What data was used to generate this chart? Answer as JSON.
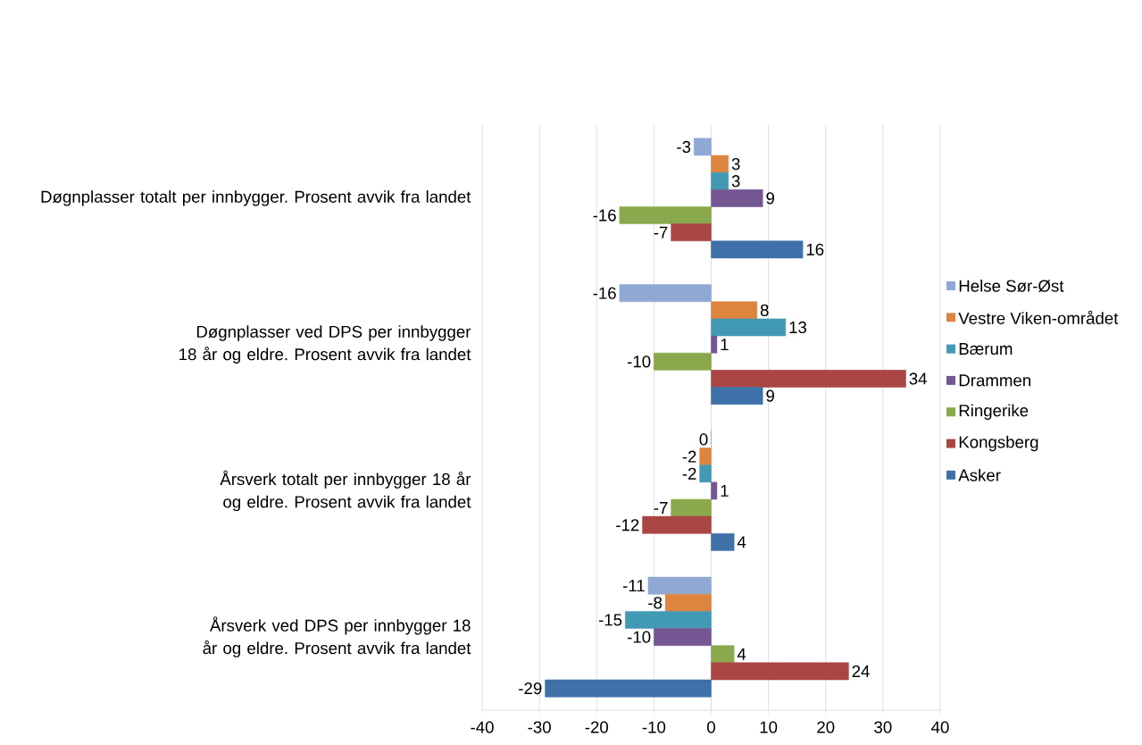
{
  "chart_data": {
    "type": "bar",
    "orientation": "horizontal",
    "categories": [
      "Døgnplasser totalt per innbygger. Prosent avvik fra landet",
      "Døgnplasser ved DPS per innbygger 18 år og eldre. Prosent avvik fra landet",
      "Årsverk totalt per innbygger 18 år og eldre. Prosent avvik fra landet",
      "Årsverk ved DPS per innbygger 18 år og eldre. Prosent avvik fra landet"
    ],
    "series": [
      {
        "name": "Helse Sør-Øst",
        "color": "#8fa9d4",
        "values": [
          -3,
          -16,
          0,
          -11
        ]
      },
      {
        "name": "Vestre Viken-området",
        "color": "#dd8440",
        "values": [
          3,
          8,
          -2,
          -8
        ]
      },
      {
        "name": "Bærum",
        "color": "#4299b4",
        "values": [
          3,
          13,
          -2,
          -15
        ]
      },
      {
        "name": "Drammen",
        "color": "#735692",
        "values": [
          9,
          1,
          1,
          -10
        ]
      },
      {
        "name": "Ringerike",
        "color": "#8aa84c",
        "values": [
          -16,
          -10,
          -7,
          4
        ]
      },
      {
        "name": "Kongsberg",
        "color": "#a94644",
        "values": [
          -7,
          34,
          -12,
          24
        ]
      },
      {
        "name": "Asker",
        "color": "#3f71a8",
        "values": [
          16,
          9,
          4,
          -29
        ]
      }
    ],
    "xlim": [
      -40,
      40
    ],
    "xticks": [
      -40,
      -30,
      -20,
      -10,
      0,
      10,
      20,
      30,
      40
    ],
    "grid": "x",
    "legend": "right",
    "data_labels": true
  }
}
